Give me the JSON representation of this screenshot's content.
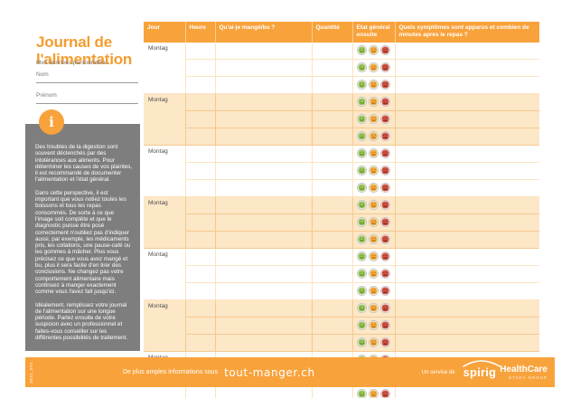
{
  "sidebar": {
    "title": "Journal de l'alimentation",
    "personal_label": "Mes données personnelles:",
    "fields": [
      {
        "label": "Nom"
      },
      {
        "label": "Prénom"
      }
    ],
    "info_icon_glyph": "i",
    "paragraphs": [
      "Des troubles de la digestion sont souvent déclenchés par des intolérances aux aliments. Pour déterminer les causes de vos plaintes, il est recommandé de documenter l'alimentation et l'état général.",
      "Dans cette perspective, il est important que vous notiez toutes les boissons et tous les repas consommés. De sorte à ce que l'image soit complète et que le diagnostic puisse être posé correctement n'oubliez pas d'indiquer aussi, par exemple, les médicaments pris, les collations, une pause-café ou les gommes à mâcher. Plus vous précisez ce que vous avez mangé et bu, plus il sera facile d'en tirer des conclusions. Ne changez pas votre comportement alimentaire mais continuez à manger exactement comme vous l'avez fait jusqu'ici.",
      "Idéalement, remplissez votre journal de l'alimentation sur une longue période. Parlez ensuite de votre suspicion avec un professionnel et faites-vous conseiller sur les différentes possibilités de traitement."
    ]
  },
  "table": {
    "columns": [
      {
        "label": "Jour"
      },
      {
        "label": "Heure"
      },
      {
        "label": "Qu'ai-je mangé/bu ?"
      },
      {
        "label": "Quantité"
      },
      {
        "label": "Etat général ensuite"
      },
      {
        "label": "Quels symptômes sont apparus et combien de minutes après le repas ?"
      }
    ],
    "day_label": "Montag",
    "group_count": 7,
    "rows_per_group": 3,
    "smileys": [
      {
        "name": "happy-face-icon",
        "mouth": "smile",
        "fill": "#9CC65A",
        "face": "#4F7A1E"
      },
      {
        "name": "neutral-face-icon",
        "mouth": "neutral",
        "fill": "#F5AA3D",
        "face": "#8F5E00"
      },
      {
        "name": "sad-face-icon",
        "mouth": "frown",
        "fill": "#D05243",
        "face": "#7A1C12"
      }
    ]
  },
  "footer": {
    "code": "3832_694",
    "info_text": "De plus amples informations sous",
    "website": "tout-manger.ch",
    "service_label": "Un service de",
    "brand_name": "spirig",
    "brand_suffix": "HealthCare",
    "brand_sub": "STADA GROUP"
  },
  "colors": {
    "accent_orange": "#F8A23B",
    "title_orange": "#F59C2E",
    "row_peach": "#FCE7C7",
    "border_light": "#FAE4C2",
    "border_peach": "#F5C98E",
    "gray_box": "#7E7E7E",
    "smiley_ring": "#C2C2C2"
  }
}
